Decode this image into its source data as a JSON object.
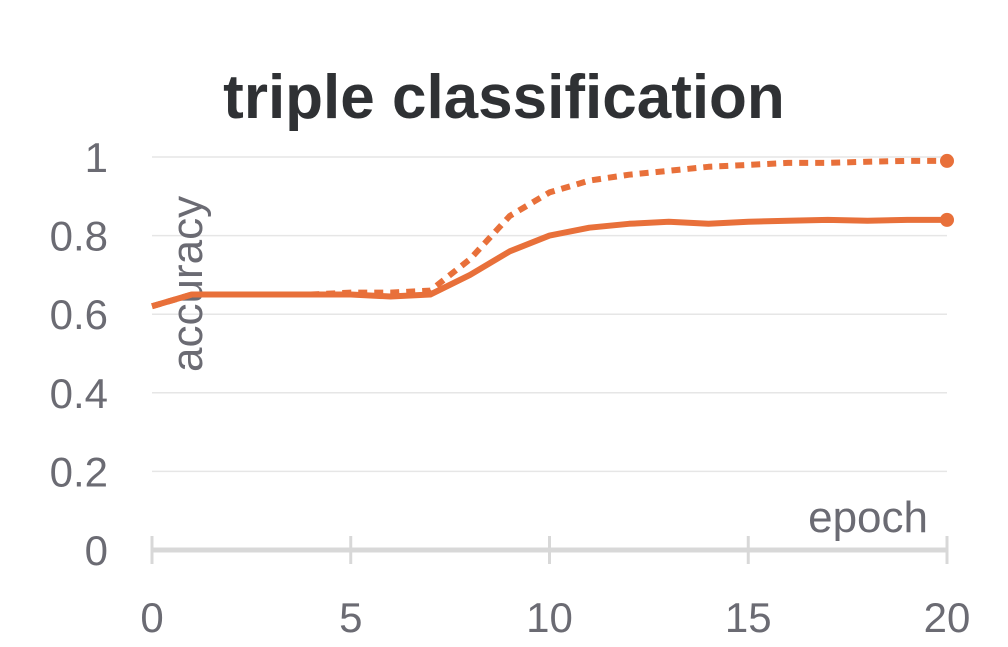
{
  "chart_data": {
    "type": "line",
    "title": "triple classification",
    "xlabel": "epoch",
    "ylabel": "accuracy",
    "xlim": [
      0,
      20
    ],
    "ylim": [
      0,
      1
    ],
    "x_ticks": [
      "0",
      "5",
      "10",
      "15",
      "20"
    ],
    "y_ticks": [
      "0",
      "0.2",
      "0.4",
      "0.6",
      "0.8",
      "1"
    ],
    "grid": true,
    "legend": "none",
    "colors": {
      "series": "#e8703a",
      "grid": "#e6e6e6",
      "axis": "#d8d8d8"
    },
    "series": [
      {
        "style": "dashed",
        "x": [
          0,
          1,
          2,
          3,
          4,
          5,
          6,
          7,
          8,
          9,
          10,
          11,
          12,
          13,
          14,
          15,
          16,
          17,
          18,
          19,
          20
        ],
        "values": [
          0.62,
          0.65,
          0.65,
          0.65,
          0.65,
          0.655,
          0.655,
          0.66,
          0.74,
          0.85,
          0.91,
          0.94,
          0.955,
          0.965,
          0.975,
          0.98,
          0.985,
          0.985,
          0.988,
          0.99,
          0.99
        ]
      },
      {
        "style": "solid",
        "x": [
          0,
          1,
          2,
          3,
          4,
          5,
          6,
          7,
          8,
          9,
          10,
          11,
          12,
          13,
          14,
          15,
          16,
          17,
          18,
          19,
          20
        ],
        "values": [
          0.62,
          0.65,
          0.65,
          0.65,
          0.65,
          0.65,
          0.645,
          0.65,
          0.7,
          0.76,
          0.8,
          0.82,
          0.83,
          0.835,
          0.83,
          0.835,
          0.838,
          0.84,
          0.838,
          0.84,
          0.84
        ]
      }
    ]
  }
}
